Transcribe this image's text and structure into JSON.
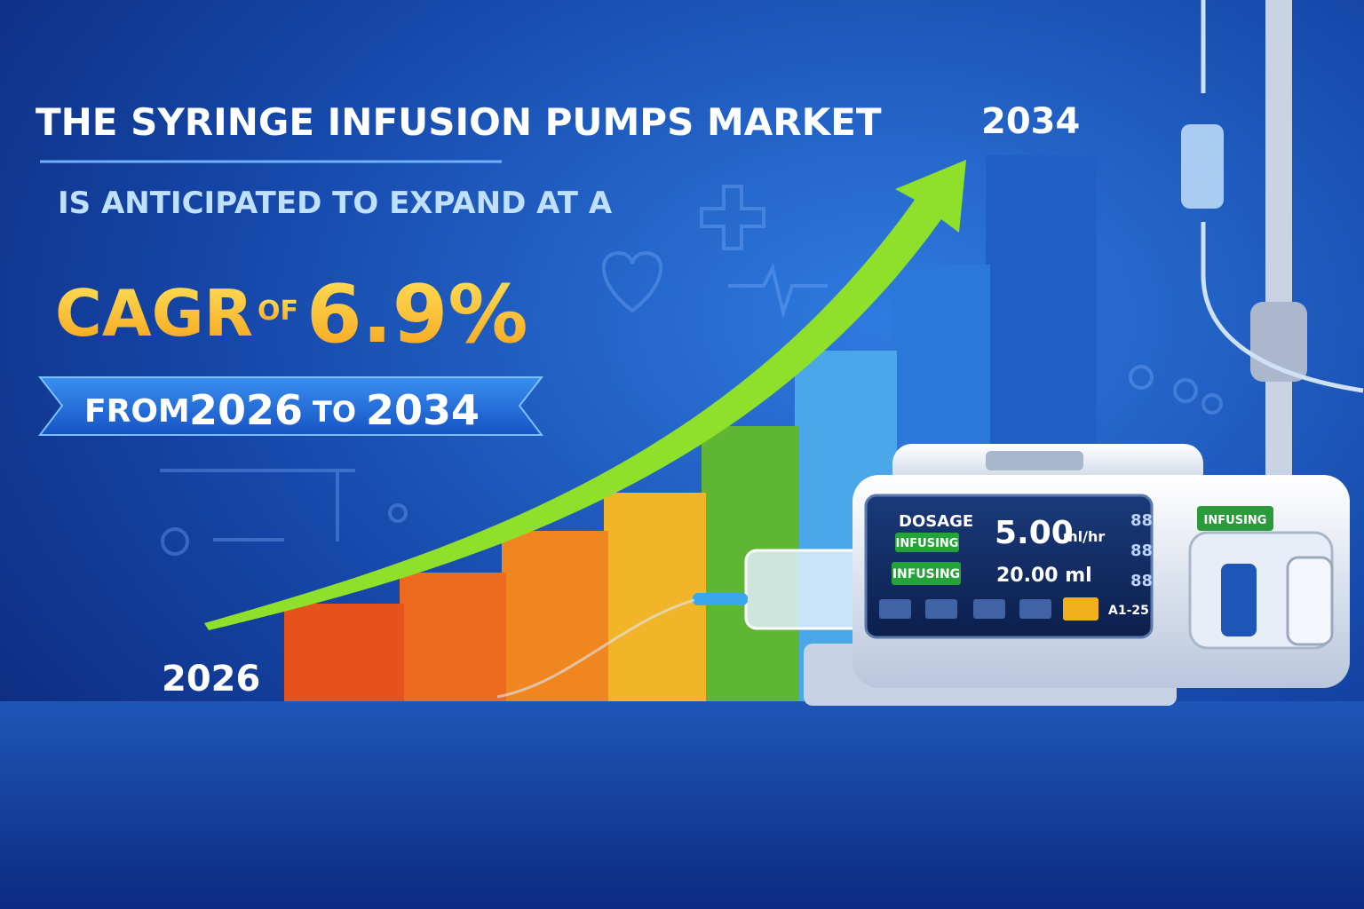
{
  "headline": {
    "title": "THE SYRINGE INFUSION PUMPS MARKET",
    "subtitle": "IS ANTICIPATED TO EXPAND AT A",
    "cagr_label": "CAGR",
    "cagr_of": "OF",
    "cagr_value": "6.9%"
  },
  "banner": {
    "from": "FROM",
    "start": "2026",
    "to": "TO",
    "end": "2034"
  },
  "chart_labels": {
    "start_year": "2026",
    "end_year": "2034"
  },
  "pump": {
    "screen": {
      "dosage": "DOSAGE",
      "status_1": "INFUSING",
      "rate": "5.00",
      "rate_unit": "ml/hr",
      "status_2": "INFUSING",
      "volume": "20.00 ml",
      "side_digits": [
        "88",
        "88",
        "88"
      ],
      "code": "A1-25"
    },
    "status_badge": "INFUSING"
  }
}
